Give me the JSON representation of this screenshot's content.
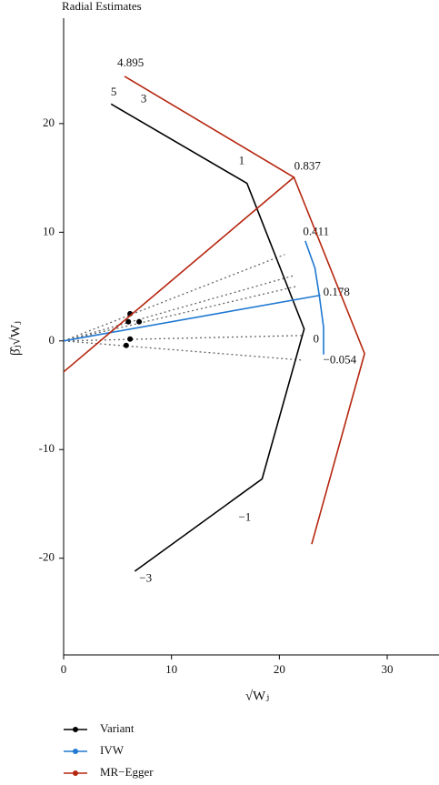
{
  "chart_data": {
    "type": "radial",
    "title": "Radial Estimates",
    "x_label": "√Wⱼ",
    "y_label": "β̂ⱼ√Wⱼ",
    "xlim": [
      0,
      34.8
    ],
    "ylim": [
      -28.9,
      29.7
    ],
    "xticks": [
      0,
      10,
      20,
      30
    ],
    "yticks": [
      -20,
      -10,
      0,
      10,
      20
    ],
    "series": [
      {
        "name": "Variant",
        "color": "#000000",
        "x": [
          6.16,
          6.0,
          7.0,
          6.16,
          5.8
        ],
        "values": [
          2.5,
          1.76,
          1.76,
          0.17,
          -0.42
        ],
        "ray_x": [
          20.5,
          21.3,
          21.5,
          22.2,
          22.0
        ],
        "ray_y": [
          7.95,
          6.0,
          5.0,
          0.5,
          -1.76
        ],
        "curve_x": [
          4.4,
          17.0,
          22.3,
          18.4,
          6.6
        ],
        "curve_y": [
          21.8,
          14.5,
          1.1,
          -12.7,
          -21.2
        ],
        "labels": [
          {
            "label": "5",
            "x": 4.64,
            "y": 22.85
          },
          {
            "label": "3",
            "x": 7.43,
            "y": 22.2
          },
          {
            "label": "1",
            "x": 16.5,
            "y": 16.5
          },
          {
            "label": "0",
            "x": 23.4,
            "y": 0.1
          },
          {
            "label": "−1",
            "x": 16.8,
            "y": -16.3
          },
          {
            "label": "−3",
            "x": 7.6,
            "y": -21.9
          }
        ]
      },
      {
        "name": "IVW",
        "color": "#1f78d1",
        "line_x": [
          0,
          23.8
        ],
        "line_y": [
          0,
          4.2
        ],
        "curve_x": [
          22.4,
          23.3,
          23.7,
          24.1,
          24.1
        ],
        "curve_y": [
          9.2,
          6.7,
          4.2,
          1.25,
          -1.25
        ],
        "labels": [
          {
            "label": "0.411",
            "x": 23.4,
            "y": 10.0
          },
          {
            "label": "0.178",
            "x": 25.3,
            "y": 4.4
          },
          {
            "label": "−0.054",
            "x": 25.6,
            "y": -1.8
          }
        ]
      },
      {
        "name": "MR−Egger",
        "color": "#b5260f",
        "line_x": [
          0,
          21.4
        ],
        "line_y": [
          -2.85,
          15.1
        ],
        "curve_x": [
          5.65,
          21.35,
          27.9,
          23.0
        ],
        "curve_y": [
          24.35,
          15.06,
          -1.17,
          -18.7
        ],
        "labels": [
          {
            "label": "4.895",
            "x": 6.2,
            "y": 25.5
          },
          {
            "label": "0.837",
            "x": 22.6,
            "y": 16.0
          }
        ]
      }
    ]
  }
}
